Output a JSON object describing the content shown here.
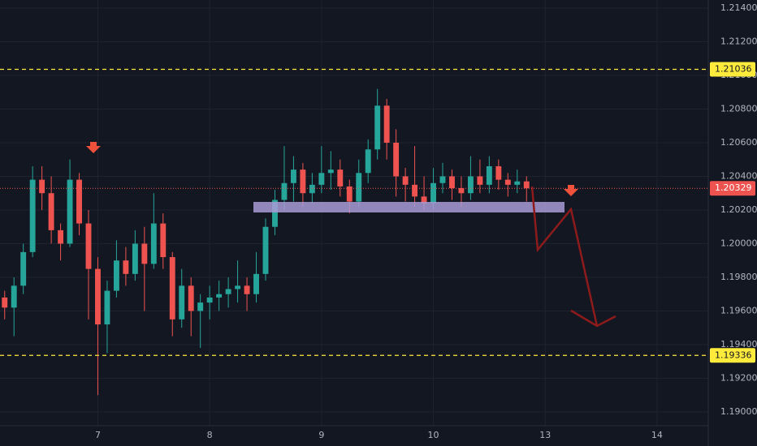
{
  "chart_data": {
    "type": "candlestick",
    "categories": [
      null,
      null,
      null,
      null,
      null,
      null,
      null,
      null,
      null,
      null,
      "7",
      null,
      null,
      null,
      null,
      null,
      null,
      null,
      null,
      null,
      null,
      null,
      "8",
      null,
      null,
      null,
      null,
      null,
      null,
      null,
      null,
      null,
      null,
      null,
      "9",
      null,
      null,
      null,
      null,
      null,
      null,
      null,
      null,
      null,
      null,
      null,
      "10",
      null,
      null,
      null,
      null,
      null,
      null,
      null,
      null,
      null,
      null,
      null,
      "13",
      null,
      null,
      null,
      null,
      null,
      null,
      null,
      null,
      null,
      null,
      null,
      "14",
      null,
      null,
      null,
      null,
      null
    ],
    "open": [
      1.1968,
      1.1962,
      1.1975,
      1.1995,
      1.2038,
      1.203,
      1.2008,
      1.2,
      1.2038,
      1.2012,
      1.1985,
      1.1952,
      1.1972,
      1.199,
      1.1982,
      1.2,
      1.1988,
      1.2012,
      1.1992,
      1.1955,
      1.1975,
      1.196,
      1.1965,
      1.1968,
      1.197,
      1.1973,
      1.1975,
      1.197,
      1.1982,
      1.201,
      1.2026,
      1.2036,
      1.2044,
      1.203,
      1.2035,
      1.2042,
      1.2044,
      1.2034,
      1.2025,
      1.2042,
      1.2056,
      1.2082,
      1.206,
      1.204,
      1.2035,
      1.2028,
      1.2024,
      1.2036,
      1.204,
      1.2033,
      1.203,
      1.204,
      1.2035,
      1.2046,
      1.2038,
      1.2035,
      1.2037,
      null,
      null,
      null,
      null,
      null,
      null,
      null,
      null,
      null,
      null,
      null,
      null,
      null,
      null,
      null,
      null,
      null,
      null,
      null
    ],
    "high": [
      1.1972,
      1.198,
      1.2,
      1.2046,
      1.2046,
      1.204,
      1.2012,
      1.205,
      1.2042,
      1.202,
      1.1992,
      1.1978,
      1.2002,
      1.1998,
      1.2008,
      1.201,
      1.203,
      1.2018,
      1.1995,
      1.1985,
      1.198,
      1.197,
      1.1975,
      1.1978,
      1.198,
      1.199,
      1.198,
      1.1995,
      1.2015,
      1.2032,
      1.2058,
      1.2052,
      1.2048,
      1.2042,
      1.2058,
      1.2055,
      1.205,
      1.2038,
      1.205,
      1.2062,
      1.2092,
      1.2086,
      1.2068,
      1.2045,
      1.2058,
      1.204,
      1.2045,
      1.2048,
      1.2044,
      1.204,
      1.2052,
      1.205,
      1.2052,
      1.205,
      1.2042,
      1.2044,
      1.204,
      null,
      null,
      null,
      null,
      null,
      null,
      null,
      null,
      null,
      null,
      null,
      null,
      null,
      null,
      null,
      null,
      null,
      null,
      null
    ],
    "low": [
      1.1955,
      1.1945,
      1.197,
      1.1992,
      1.202,
      1.2,
      1.199,
      1.1998,
      1.2005,
      1.1955,
      1.191,
      1.1935,
      1.1968,
      1.1975,
      1.1978,
      1.196,
      1.1985,
      1.1985,
      1.1945,
      1.195,
      1.1945,
      1.1938,
      1.1955,
      1.196,
      1.1962,
      1.1965,
      1.196,
      1.1965,
      1.1978,
      1.2005,
      1.202,
      1.2025,
      1.2022,
      1.2024,
      1.203,
      1.2032,
      1.2028,
      1.2018,
      1.2022,
      1.2036,
      1.205,
      1.205,
      1.2028,
      1.2025,
      1.2022,
      1.202,
      1.202,
      1.203,
      1.2026,
      1.2022,
      1.2026,
      1.203,
      1.203,
      1.2032,
      1.2028,
      1.203,
      1.2025,
      null,
      null,
      null,
      null,
      null,
      null,
      null,
      null,
      null,
      null,
      null,
      null,
      null,
      null,
      null,
      null,
      null,
      null,
      null
    ],
    "close": [
      1.1962,
      1.1975,
      1.1995,
      1.2038,
      1.203,
      1.2008,
      1.2,
      1.2038,
      1.2012,
      1.1985,
      1.1952,
      1.1972,
      1.199,
      1.1982,
      1.2,
      1.1988,
      1.2012,
      1.1992,
      1.1955,
      1.1975,
      1.196,
      1.1965,
      1.1968,
      1.197,
      1.1973,
      1.1975,
      1.197,
      1.1982,
      1.201,
      1.2026,
      1.2036,
      1.2044,
      1.203,
      1.2035,
      1.2042,
      1.2044,
      1.2034,
      1.2025,
      1.2042,
      1.2056,
      1.2082,
      1.206,
      1.204,
      1.2035,
      1.2028,
      1.2024,
      1.2036,
      1.204,
      1.2033,
      1.203,
      1.204,
      1.2035,
      1.2046,
      1.2038,
      1.2035,
      1.2037,
      1.20329,
      null,
      null,
      null,
      null,
      null,
      null,
      null,
      null,
      null,
      null,
      null,
      null,
      null,
      null,
      null,
      null,
      null,
      null,
      null
    ],
    "up_color": "#26a69a",
    "down_color": "#ef5350",
    "ylim": [
      1.18918,
      1.21448
    ],
    "yticks": [
      {
        "value": 1.19,
        "label": "1.19000"
      },
      {
        "value": 1.192,
        "label": "1.19200"
      },
      {
        "value": 1.194,
        "label": "1.19400"
      },
      {
        "value": 1.196,
        "label": "1.19600"
      },
      {
        "value": 1.198,
        "label": "1.19800"
      },
      {
        "value": 1.2,
        "label": "1.20000"
      },
      {
        "value": 1.202,
        "label": "1.20200"
      },
      {
        "value": 1.204,
        "label": "1.20400"
      },
      {
        "value": 1.206,
        "label": "1.20600"
      },
      {
        "value": 1.208,
        "label": "1.20800"
      },
      {
        "value": 1.21,
        "label": "1.21000"
      },
      {
        "value": 1.212,
        "label": "1.21200"
      },
      {
        "value": 1.214,
        "label": "1.21400"
      }
    ],
    "grid": true,
    "levels": [
      1.21036,
      1.19336
    ],
    "level_color": "#ffeb3b",
    "last_price": 1.20329,
    "last_price_color": "#ef5350"
  }
}
